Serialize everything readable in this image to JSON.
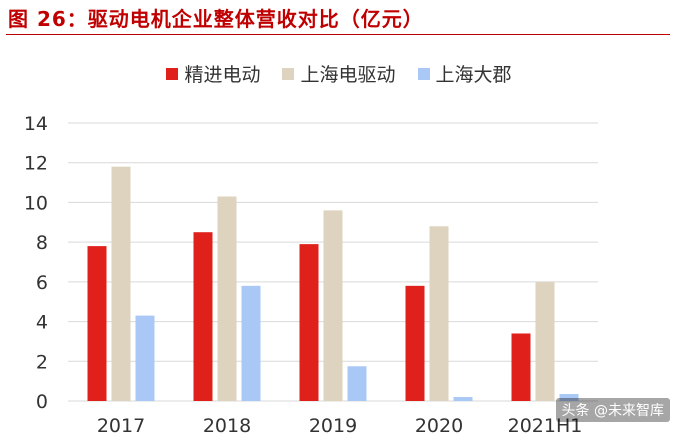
{
  "figure_title": "图 26：驱动电机企业整体营收对比（亿元）",
  "watermark": "头条 @未来智库",
  "colors": {
    "title": "#c00000",
    "grid": "#d9d9d9",
    "tick_text": "#333333"
  },
  "chart_data": {
    "type": "bar",
    "categories": [
      "2017",
      "2018",
      "2019",
      "2020",
      "2021H1"
    ],
    "series": [
      {
        "name": "精进电动",
        "color": "#e0201b",
        "values": [
          7.8,
          8.5,
          7.9,
          5.8,
          3.4
        ]
      },
      {
        "name": "上海电驱动",
        "color": "#ded3bf",
        "values": [
          11.8,
          10.3,
          9.6,
          8.8,
          6.0
        ]
      },
      {
        "name": "上海大郡",
        "color": "#a9c8f5",
        "values": [
          4.3,
          5.8,
          1.75,
          0.2,
          0.35
        ]
      }
    ],
    "ylim": [
      0,
      14
    ],
    "yticks": [
      0,
      2,
      4,
      6,
      8,
      10,
      12,
      14
    ],
    "grid": true,
    "legend_position": "top"
  }
}
